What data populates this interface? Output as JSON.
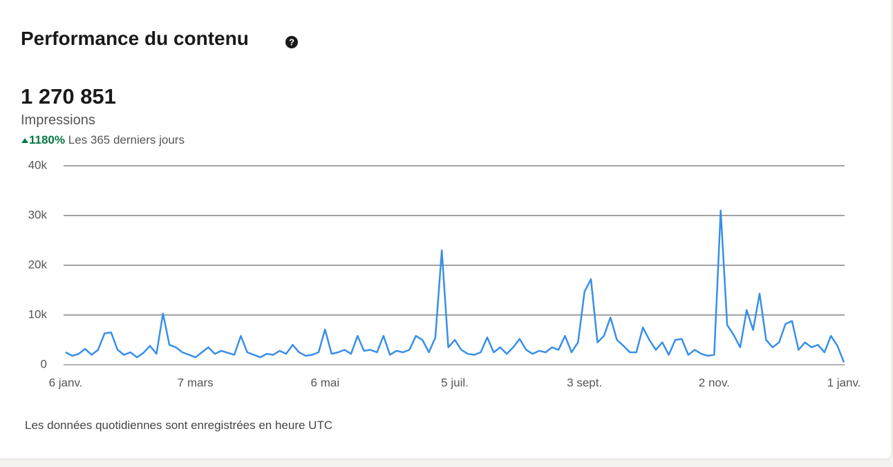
{
  "header": {
    "title": "Performance du contenu"
  },
  "summary": {
    "total": "1 270 851",
    "metric": "Impressions",
    "change": "1180%",
    "period": "Les 365 derniers jours"
  },
  "chart_data": {
    "type": "line",
    "color": "#378fe9",
    "grid": true,
    "categories": [
      "6 janv.",
      null,
      null,
      null,
      null,
      null,
      null,
      null,
      null,
      null,
      null,
      null,
      null,
      null,
      null,
      null,
      null,
      null,
      null,
      null,
      "7 mars",
      null,
      null,
      null,
      null,
      null,
      null,
      null,
      null,
      null,
      null,
      null,
      null,
      null,
      null,
      null,
      null,
      null,
      null,
      null,
      "6 mai",
      null,
      null,
      null,
      null,
      null,
      null,
      null,
      null,
      null,
      null,
      null,
      null,
      null,
      null,
      null,
      null,
      null,
      null,
      null,
      "5 juil.",
      null,
      null,
      null,
      null,
      null,
      null,
      null,
      null,
      null,
      null,
      null,
      null,
      null,
      null,
      null,
      null,
      null,
      null,
      null,
      "3 sept.",
      null,
      null,
      null,
      null,
      null,
      null,
      null,
      null,
      null,
      null,
      null,
      null,
      null,
      null,
      null,
      null,
      null,
      null,
      null,
      "2 nov.",
      null,
      null,
      null,
      null,
      null,
      null,
      null,
      null,
      null,
      null,
      null,
      null,
      null,
      null,
      null,
      null,
      null,
      null,
      null,
      "1 janv."
    ],
    "values": [
      2500,
      1800,
      2200,
      3200,
      2000,
      3000,
      6300,
      6500,
      3000,
      2000,
      2500,
      1500,
      2400,
      3800,
      2200,
      10300,
      4000,
      3500,
      2500,
      2000,
      1500,
      2500,
      3500,
      2200,
      2800,
      2400,
      2000,
      5800,
      2500,
      2000,
      1500,
      2200,
      2000,
      2800,
      2200,
      4000,
      2500,
      1800,
      2000,
      2500,
      7100,
      2200,
      2500,
      3000,
      2200,
      5800,
      2800,
      3000,
      2500,
      5800,
      2000,
      2800,
      2500,
      3000,
      5800,
      5000,
      2500,
      5500,
      23000,
      3500,
      5000,
      3000,
      2200,
      2000,
      2500,
      5500,
      2500,
      3500,
      2200,
      3500,
      5200,
      3000,
      2200,
      2800,
      2500,
      3500,
      3000,
      5800,
      2500,
      4500,
      14700,
      17200,
      4500,
      5800,
      9500,
      5000,
      3800,
      2500,
      2500,
      7500,
      5000,
      3000,
      4500,
      2000,
      5000,
      5200,
      2000,
      3000,
      2200,
      1800,
      2000,
      31000,
      8000,
      6000,
      3500,
      11000,
      7000,
      14300,
      5000,
      3500,
      4500,
      8200,
      8800,
      3000,
      4500,
      3500,
      4000,
      2500,
      5800,
      3800,
      500
    ],
    "ylim": [
      0,
      40000
    ],
    "yticks": [
      0,
      {
        "value": 10000,
        "label": "10k"
      },
      {
        "value": 20000,
        "label": "20k"
      },
      {
        "value": 30000,
        "label": "30k"
      },
      {
        "value": 40000,
        "label": "40k"
      }
    ]
  },
  "footer": {
    "note": "Les données quotidiennes sont enregistrées en heure UTC"
  }
}
